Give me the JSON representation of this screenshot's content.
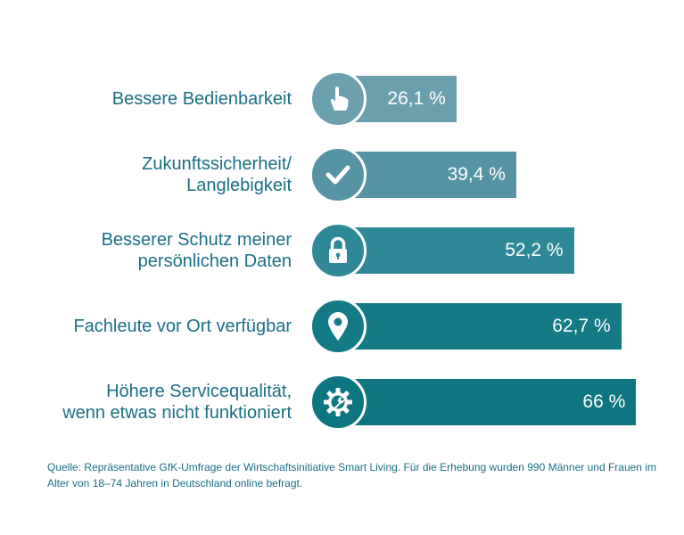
{
  "chart_data": {
    "type": "bar",
    "orientation": "horizontal",
    "categories": [
      [
        "Bessere Bedienbarkeit"
      ],
      [
        "Zukunftssicherheit/",
        "Langlebigkeit"
      ],
      [
        "Besserer Schutz meiner",
        "persönlichen Daten"
      ],
      [
        "Fachleute vor Ort verfügbar"
      ],
      [
        "Höhere Servicequalität,",
        "wenn etwas nicht funktioniert"
      ]
    ],
    "values": [
      26.1,
      39.4,
      52.2,
      62.7,
      66
    ],
    "value_labels": [
      "26,1 %",
      "39,4 %",
      "52,2 %",
      "62,7 %",
      "66 %"
    ],
    "icons": [
      "pointing-hand-icon",
      "checkmark-icon",
      "padlock-icon",
      "location-pin-icon",
      "gear-wrench-icon"
    ],
    "colors": [
      "#6a9fae",
      "#5693a4",
      "#2f8898",
      "#137a86",
      "#0e7681"
    ],
    "title": "",
    "xlabel": "",
    "ylabel": "",
    "grid": false,
    "legend": "none"
  },
  "source_text": "Quelle: Repräsentative GfK-Umfrage der Wirtschaftsinitiative Smart Living. Für die Erhebung wurden 990 Männer und Frauen im Alter von 18–74 Jahren in Deutschland online befragt."
}
